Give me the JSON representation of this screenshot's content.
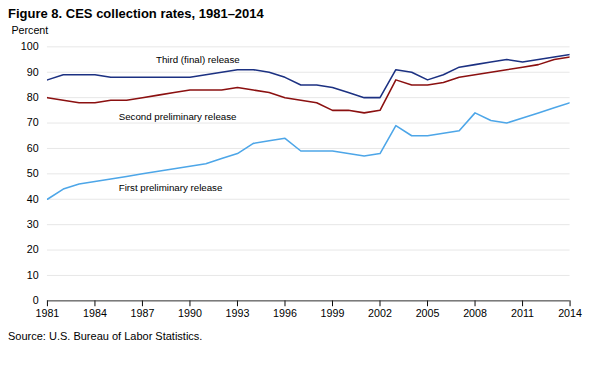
{
  "chart_data": {
    "type": "line",
    "title": "Figure 8. CES collection rates, 1981–2014",
    "ylabel": "Percent",
    "caption": "Source: U.S. Bureau of Labor Statistics.",
    "x": [
      1981,
      1982,
      1983,
      1984,
      1985,
      1986,
      1987,
      1988,
      1989,
      1990,
      1991,
      1992,
      1993,
      1994,
      1995,
      1996,
      1997,
      1998,
      1999,
      2000,
      2001,
      2002,
      2003,
      2004,
      2005,
      2006,
      2007,
      2008,
      2009,
      2010,
      2011,
      2012,
      2013,
      2014
    ],
    "series": [
      {
        "name": "Third (final) release",
        "color": "#1c3182",
        "values": [
          87,
          89,
          89,
          89,
          88,
          88,
          88,
          88,
          88,
          88,
          89,
          90,
          91,
          91,
          90,
          88,
          85,
          85,
          84,
          82,
          80,
          80,
          91,
          90,
          87,
          89,
          92,
          93,
          94,
          95,
          94,
          95,
          96,
          97
        ]
      },
      {
        "name": "Second preliminary release",
        "color": "#8b1010",
        "values": [
          80,
          79,
          78,
          78,
          79,
          79,
          80,
          81,
          82,
          83,
          83,
          83,
          84,
          83,
          82,
          80,
          79,
          78,
          75,
          75,
          74,
          75,
          87,
          85,
          85,
          86,
          88,
          89,
          90,
          91,
          92,
          93,
          95,
          96
        ]
      },
      {
        "name": "First preliminary release",
        "color": "#4da6e8",
        "values": [
          40,
          44,
          46,
          47,
          48,
          49,
          50,
          51,
          52,
          53,
          54,
          56,
          58,
          62,
          63,
          64,
          59,
          59,
          59,
          58,
          57,
          58,
          69,
          65,
          65,
          66,
          67,
          74,
          71,
          70,
          72,
          74,
          76,
          78
        ]
      }
    ],
    "xlim": [
      1981,
      2014
    ],
    "xticks": [
      1981,
      1984,
      1987,
      1990,
      1993,
      1996,
      1999,
      2002,
      2005,
      2008,
      2011,
      2014
    ],
    "ylim": [
      0,
      100
    ],
    "yticks": [
      0,
      10,
      20,
      30,
      40,
      50,
      60,
      70,
      80,
      90,
      100
    ],
    "grid": true,
    "annotations": [
      {
        "text": "Third (final) release",
        "x": 1990.5,
        "y": 93.5
      },
      {
        "text": "Second preliminary release",
        "x": 1985.5,
        "y": 74
      },
      {
        "text": "First preliminary release",
        "x": 1985.5,
        "y": 46
      }
    ]
  }
}
